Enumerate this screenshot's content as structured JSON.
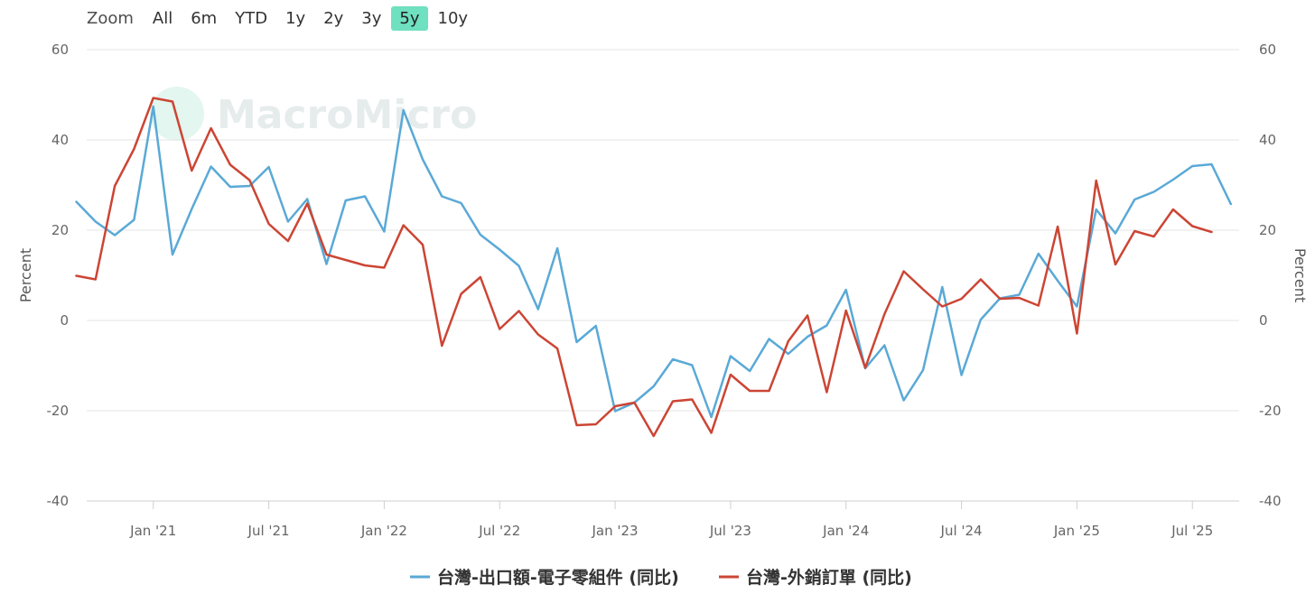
{
  "zoom": {
    "label": "Zoom",
    "buttons": [
      "All",
      "6m",
      "YTD",
      "1y",
      "2y",
      "3y",
      "5y",
      "10y"
    ],
    "active": "5y"
  },
  "watermark": "MacroMicro",
  "colors": {
    "blue": "#5aa9d6",
    "red": "#cc4534",
    "grid": "#e6e6e6",
    "active_button": "#6fe0c0"
  },
  "chart_data": {
    "type": "line",
    "x_ticks": [
      "Jan '21",
      "Jul '21",
      "Jan '22",
      "Jul '22",
      "Jan '23",
      "Jul '23",
      "Jan '24",
      "Jul '24",
      "Jan '25",
      "Jul '25"
    ],
    "y_ticks": [
      -40,
      -20,
      0,
      20,
      40,
      60
    ],
    "ylim": [
      -40,
      60
    ],
    "ylabel_left": "Percent",
    "ylabel_right": "Percent",
    "x_start": "2020-09",
    "legend_position": "bottom",
    "series": [
      {
        "name": "台灣-出口額-電子零組件 (同比)",
        "color": "#5aa9d6",
        "values": [
          26.3,
          21.9,
          18.9,
          22.3,
          47.4,
          14.6,
          24.7,
          34.1,
          29.6,
          29.8,
          34.0,
          21.9,
          26.9,
          12.5,
          26.6,
          27.5,
          19.7,
          46.6,
          35.7,
          27.5,
          26.0,
          19.0,
          15.7,
          12.1,
          2.5,
          16.0,
          -4.8,
          -1.2,
          -20.1,
          -18.2,
          -14.6,
          -8.6,
          -9.9,
          -21.4,
          -7.9,
          -11.2,
          -4.1,
          -7.4,
          -3.6,
          -1.1,
          6.8,
          -10.6,
          -5.5,
          -17.7,
          -11.0,
          7.4,
          -12.1,
          0.2,
          4.9,
          5.7,
          14.8,
          8.8,
          3.1,
          24.6,
          19.3,
          26.8,
          28.5,
          31.2,
          34.2,
          34.6,
          25.8
        ]
      },
      {
        "name": "台灣-外銷訂單 (同比)",
        "color": "#cc4534",
        "values": [
          9.9,
          9.1,
          29.8,
          38.0,
          49.3,
          48.5,
          33.2,
          42.6,
          34.5,
          31.1,
          21.4,
          17.6,
          25.9,
          14.6,
          13.4,
          12.2,
          11.7,
          21.1,
          16.8,
          -5.6,
          5.9,
          9.6,
          -1.9,
          2.1,
          -3.1,
          -6.2,
          -23.2,
          -23.0,
          -19.0,
          -18.2,
          -25.6,
          -17.9,
          -17.5,
          -24.9,
          -12.0,
          -15.6,
          -15.6,
          -4.6,
          1.1,
          -15.9,
          2.2,
          -10.5,
          1.4,
          10.9,
          6.9,
          3.1,
          4.8,
          9.1,
          4.8,
          5.0,
          3.3,
          20.8,
          -2.9,
          31.0,
          12.4,
          19.8,
          18.6,
          24.6,
          20.9,
          19.6
        ]
      }
    ]
  }
}
